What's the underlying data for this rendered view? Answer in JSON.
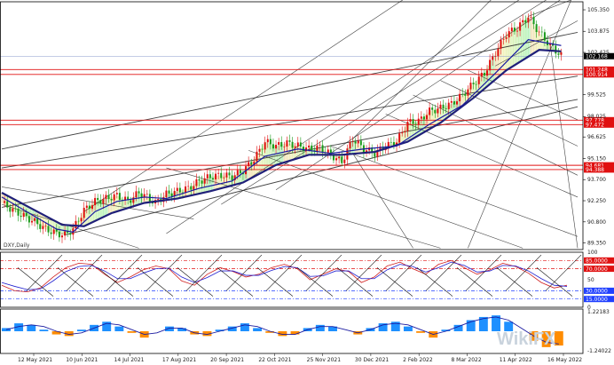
{
  "chart_data": [
    {
      "type": "candlestick",
      "panel": "main",
      "symbol": "DXY,Daily",
      "y_ticks": [
        105.35,
        103.875,
        102.425,
        99.525,
        98.025,
        96.625,
        95.15,
        93.7,
        92.25,
        90.8,
        89.35
      ],
      "ylim": [
        88.9,
        105.9
      ],
      "x_labels": [
        "12 May 2021",
        "10 Jun 2021",
        "14 Jul 2021",
        "17 Aug 2021",
        "20 Sep 2021",
        "22 Oct 2021",
        "25 Nov 2021",
        "30 Dec 2021",
        "2 Feb 2022",
        "8 Mar 2022",
        "11 Apr 2022",
        "16 May 2022"
      ],
      "price_tags": [
        {
          "value": 102.168,
          "label": "102.168",
          "color": "#000000"
        },
        {
          "value": 101.248,
          "label": "101.248",
          "color": "#e01010"
        },
        {
          "value": 100.914,
          "label": "100.914",
          "color": "#e01010"
        },
        {
          "value": 97.778,
          "label": "97.778",
          "color": "#e01010"
        },
        {
          "value": 97.472,
          "label": "97.472",
          "color": "#e01010"
        },
        {
          "value": 94.681,
          "label": "94.681",
          "color": "#e01010"
        },
        {
          "value": 94.388,
          "label": "94.388",
          "color": "#e01010"
        }
      ],
      "close_series": [
        {
          "x": 0,
          "y": 92.1
        },
        {
          "x": 4,
          "y": 91.6
        },
        {
          "x": 8,
          "y": 91.2
        },
        {
          "x": 12,
          "y": 90.8
        },
        {
          "x": 16,
          "y": 90.3
        },
        {
          "x": 20,
          "y": 90.0
        },
        {
          "x": 23,
          "y": 89.9
        },
        {
          "x": 26,
          "y": 90.3
        },
        {
          "x": 30,
          "y": 91.6
        },
        {
          "x": 34,
          "y": 92.2
        },
        {
          "x": 38,
          "y": 92.4
        },
        {
          "x": 42,
          "y": 92.6
        },
        {
          "x": 46,
          "y": 92.2
        },
        {
          "x": 50,
          "y": 92.8
        },
        {
          "x": 53,
          "y": 92.5
        },
        {
          "x": 56,
          "y": 92.1
        },
        {
          "x": 60,
          "y": 92.7
        },
        {
          "x": 64,
          "y": 92.9
        },
        {
          "x": 68,
          "y": 93.1
        },
        {
          "x": 72,
          "y": 93.6
        },
        {
          "x": 76,
          "y": 93.9
        },
        {
          "x": 80,
          "y": 94.0
        },
        {
          "x": 84,
          "y": 93.9
        },
        {
          "x": 88,
          "y": 94.3
        },
        {
          "x": 92,
          "y": 95.1
        },
        {
          "x": 96,
          "y": 96.3
        },
        {
          "x": 100,
          "y": 96.0
        },
        {
          "x": 104,
          "y": 96.2
        },
        {
          "x": 108,
          "y": 96.0
        },
        {
          "x": 112,
          "y": 95.8
        },
        {
          "x": 116,
          "y": 95.9
        },
        {
          "x": 120,
          "y": 95.4
        },
        {
          "x": 124,
          "y": 94.9
        },
        {
          "x": 128,
          "y": 96.5
        },
        {
          "x": 132,
          "y": 95.8
        },
        {
          "x": 136,
          "y": 95.5
        },
        {
          "x": 140,
          "y": 96.0
        },
        {
          "x": 144,
          "y": 96.3
        },
        {
          "x": 148,
          "y": 97.6
        },
        {
          "x": 152,
          "y": 97.7
        },
        {
          "x": 156,
          "y": 98.4
        },
        {
          "x": 160,
          "y": 98.6
        },
        {
          "x": 164,
          "y": 98.9
        },
        {
          "x": 168,
          "y": 99.5
        },
        {
          "x": 172,
          "y": 100.3
        },
        {
          "x": 176,
          "y": 101.0
        },
        {
          "x": 180,
          "y": 102.4
        },
        {
          "x": 184,
          "y": 103.7
        },
        {
          "x": 188,
          "y": 104.1
        },
        {
          "x": 192,
          "y": 104.9
        },
        {
          "x": 196,
          "y": 103.8
        },
        {
          "x": 200,
          "y": 102.9
        },
        {
          "x": 204,
          "y": 102.2
        }
      ],
      "ma_fast": [
        {
          "x": 0,
          "y": 92.5
        },
        {
          "x": 10,
          "y": 91.4
        },
        {
          "x": 20,
          "y": 90.3
        },
        {
          "x": 26,
          "y": 90.1
        },
        {
          "x": 34,
          "y": 91.5
        },
        {
          "x": 42,
          "y": 92.2
        },
        {
          "x": 52,
          "y": 92.5
        },
        {
          "x": 60,
          "y": 92.4
        },
        {
          "x": 72,
          "y": 93.1
        },
        {
          "x": 84,
          "y": 93.6
        },
        {
          "x": 96,
          "y": 95.3
        },
        {
          "x": 108,
          "y": 95.8
        },
        {
          "x": 120,
          "y": 95.5
        },
        {
          "x": 132,
          "y": 95.8
        },
        {
          "x": 144,
          "y": 96.0
        },
        {
          "x": 156,
          "y": 97.5
        },
        {
          "x": 168,
          "y": 98.8
        },
        {
          "x": 180,
          "y": 101.0
        },
        {
          "x": 192,
          "y": 103.3
        },
        {
          "x": 204,
          "y": 102.9
        }
      ],
      "ma_slow": [
        {
          "x": 0,
          "y": 92.8
        },
        {
          "x": 12,
          "y": 91.6
        },
        {
          "x": 22,
          "y": 90.6
        },
        {
          "x": 30,
          "y": 90.5
        },
        {
          "x": 40,
          "y": 91.4
        },
        {
          "x": 52,
          "y": 92.1
        },
        {
          "x": 64,
          "y": 92.4
        },
        {
          "x": 76,
          "y": 92.9
        },
        {
          "x": 88,
          "y": 93.5
        },
        {
          "x": 100,
          "y": 94.7
        },
        {
          "x": 112,
          "y": 95.4
        },
        {
          "x": 124,
          "y": 95.4
        },
        {
          "x": 136,
          "y": 95.6
        },
        {
          "x": 148,
          "y": 96.3
        },
        {
          "x": 160,
          "y": 97.6
        },
        {
          "x": 172,
          "y": 99.3
        },
        {
          "x": 184,
          "y": 101.2
        },
        {
          "x": 196,
          "y": 102.6
        },
        {
          "x": 204,
          "y": 102.5
        }
      ],
      "x_range": [
        0,
        210
      ]
    },
    {
      "type": "line",
      "panel": "oscillator",
      "y_ticks": [
        100,
        85,
        70,
        50,
        30,
        15,
        0
      ],
      "tag_labels": [
        "85.0000",
        "70.0000",
        "30.0000",
        "15.0000"
      ],
      "levels": [
        {
          "value": 85,
          "color": "#e01010",
          "style": "dashdot"
        },
        {
          "value": 70,
          "color": "#e01010",
          "style": "dashdot"
        },
        {
          "value": 30,
          "color": "#2040ff",
          "style": "dashdot"
        },
        {
          "value": 15,
          "color": "#2040ff",
          "style": "dashdot"
        }
      ],
      "ylim": [
        0,
        100
      ],
      "series": [
        {
          "color": "#d02020",
          "values": [
            40,
            30,
            28,
            35,
            55,
            72,
            80,
            78,
            60,
            45,
            55,
            68,
            75,
            70,
            48,
            40,
            60,
            72,
            65,
            55,
            60,
            72,
            78,
            70,
            50,
            60,
            70,
            65,
            45,
            55,
            75,
            82,
            70,
            60,
            78,
            85,
            72,
            60,
            68,
            80,
            74,
            62,
            45,
            35,
            40
          ]
        },
        {
          "color": "#2020d0",
          "values": [
            45,
            38,
            32,
            33,
            48,
            65,
            74,
            76,
            66,
            52,
            52,
            62,
            70,
            71,
            55,
            45,
            54,
            66,
            66,
            58,
            58,
            67,
            74,
            72,
            56,
            57,
            66,
            66,
            52,
            52,
            68,
            78,
            74,
            64,
            72,
            82,
            76,
            64,
            66,
            76,
            75,
            66,
            52,
            40,
            38
          ]
        }
      ]
    },
    {
      "type": "bar",
      "panel": "histogram",
      "y_ticks": [
        1.22183,
        -1.24022
      ],
      "ylim": [
        -1.4,
        1.4
      ],
      "values": [
        0.2,
        0.5,
        0.4,
        0.1,
        -0.2,
        -0.3,
        0.1,
        0.4,
        0.6,
        0.3,
        -0.1,
        -0.4,
        0.0,
        0.3,
        0.2,
        -0.2,
        -0.3,
        0.1,
        0.3,
        0.5,
        0.2,
        -0.1,
        -0.3,
        -0.2,
        0.2,
        0.4,
        0.3,
        0.0,
        -0.2,
        0.2,
        0.5,
        0.6,
        0.3,
        -0.1,
        -0.4,
        0.1,
        0.4,
        0.7,
        0.9,
        1.0,
        0.6,
        0.0,
        -0.6,
        -1.0,
        -0.9
      ],
      "signal": [
        0.1,
        0.3,
        0.4,
        0.3,
        0.0,
        -0.2,
        -0.1,
        0.2,
        0.5,
        0.4,
        0.1,
        -0.2,
        -0.1,
        0.2,
        0.2,
        -0.1,
        -0.2,
        0.0,
        0.2,
        0.4,
        0.3,
        0.0,
        -0.2,
        -0.2,
        0.1,
        0.3,
        0.3,
        0.1,
        -0.1,
        0.1,
        0.4,
        0.5,
        0.4,
        0.1,
        -0.2,
        0.0,
        0.3,
        0.6,
        0.8,
        0.9,
        0.7,
        0.2,
        -0.3,
        -0.7,
        -0.8
      ]
    }
  ],
  "watermark": "WikiFX",
  "colors": {
    "bull": "#e01010",
    "bear": "#1a9a1a",
    "ma_fast": "#1a1aa0",
    "ma_slow": "#20207a",
    "hist_pos": "#1e90ff",
    "hist_neg": "#ff8c00",
    "trendline": "#222222"
  }
}
